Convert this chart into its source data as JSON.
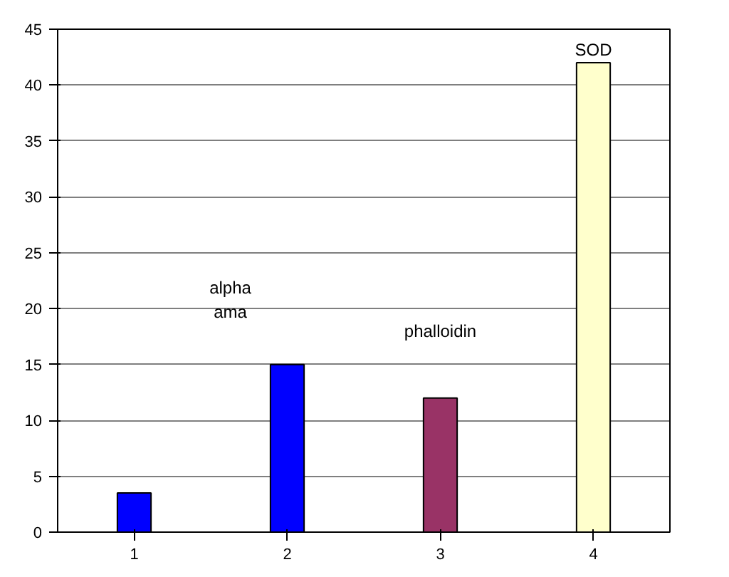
{
  "chart_data": {
    "type": "bar",
    "categories": [
      "1",
      "2",
      "3",
      "4"
    ],
    "values": [
      3.5,
      15,
      12,
      42
    ],
    "colors": [
      "#0000ff",
      "#0000ff",
      "#993366",
      "#ffffcc"
    ],
    "ylim": [
      0,
      45
    ],
    "yticks": [
      0,
      5,
      10,
      15,
      20,
      25,
      30,
      35,
      40,
      45
    ],
    "grid": "y",
    "annotations": [
      "alpha\nama",
      "phalloidin",
      "SOD"
    ]
  }
}
